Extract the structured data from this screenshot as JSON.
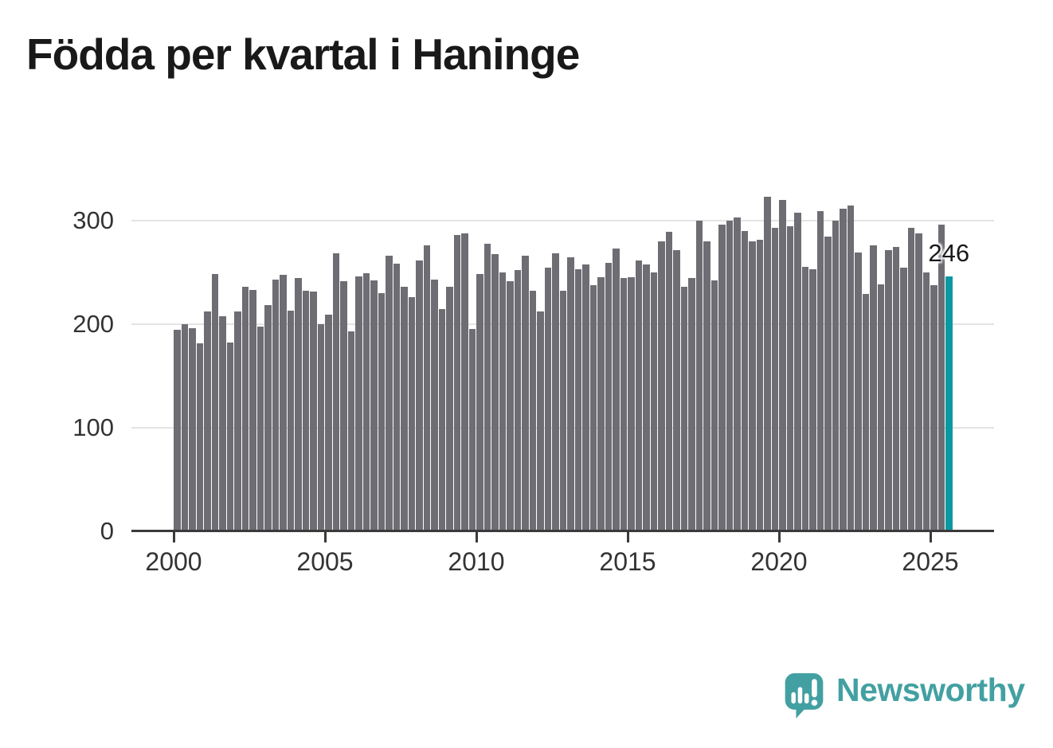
{
  "title": "Födda per kvartal i Haninge",
  "chart_data": {
    "type": "bar",
    "title": "Födda per kvartal i Haninge",
    "period_start": "2000Q1",
    "period_end": "2025Q3",
    "values": [
      194,
      200,
      196,
      181,
      212,
      248,
      207,
      182,
      212,
      236,
      233,
      197,
      218,
      243,
      247,
      213,
      244,
      232,
      231,
      200,
      209,
      268,
      241,
      193,
      246,
      249,
      242,
      230,
      266,
      258,
      236,
      226,
      261,
      276,
      243,
      214,
      236,
      286,
      287,
      195,
      248,
      277,
      267,
      250,
      241,
      252,
      266,
      232,
      212,
      254,
      268,
      232,
      264,
      253,
      257,
      237,
      245,
      259,
      273,
      244,
      245,
      261,
      257,
      250,
      280,
      289,
      271,
      236,
      244,
      300,
      280,
      242,
      296,
      300,
      303,
      290,
      280,
      281,
      323,
      293,
      320,
      294,
      307,
      255,
      253,
      309,
      284,
      300,
      311,
      314,
      269,
      229,
      276,
      238,
      271,
      274,
      254,
      293,
      287,
      250,
      237,
      296,
      246
    ],
    "x_tick_years": [
      2000,
      2005,
      2010,
      2015,
      2020,
      2025
    ],
    "y_ticks": [
      0,
      100,
      200,
      300
    ],
    "ylim": [
      0,
      330
    ],
    "grid": "horizontal",
    "legend": "none",
    "bar_color": "#6e6d73",
    "highlight_color": "#0a99a3",
    "highlight_index": 102,
    "highlight_label": "246"
  },
  "watermark": {
    "brand": "Newsworthy",
    "icon": "newsworthy-speech-bubble-chart-icon",
    "color": "#43a0a2"
  }
}
